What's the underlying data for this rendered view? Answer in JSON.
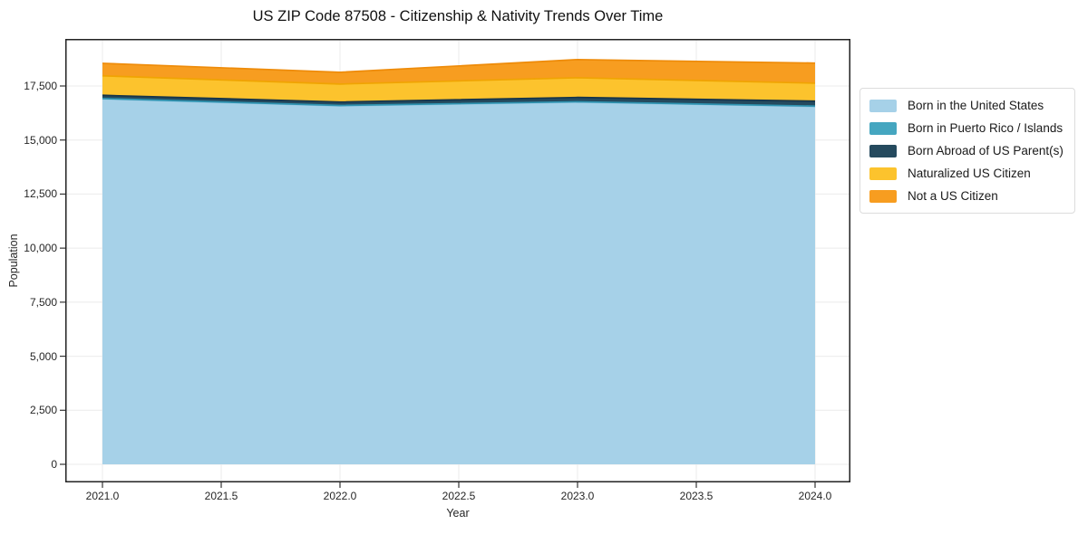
{
  "title": "US ZIP Code 87508 - Citizenship & Nativity Trends Over Time",
  "chart_data": {
    "type": "area",
    "stacked": true,
    "title": "US ZIP Code 87508 - Citizenship & Nativity Trends Over Time",
    "xlabel": "Year",
    "ylabel": "Population",
    "x": [
      2021,
      2022,
      2023,
      2024
    ],
    "series": [
      {
        "name": "Born in the United States",
        "values": [
          16900,
          16580,
          16750,
          16550
        ],
        "fill": "#a6d1e8",
        "edge": "#88c0dd"
      },
      {
        "name": "Born in Puerto Rico / Islands",
        "values": [
          20,
          20,
          20,
          20
        ],
        "fill": "#45a6c0",
        "edge": "#2e93b0"
      },
      {
        "name": "Born Abroad of US Parent(s)",
        "values": [
          150,
          160,
          200,
          230
        ],
        "fill": "#254a5e",
        "edge": "#16344a"
      },
      {
        "name": "Naturalized US Citizen",
        "values": [
          900,
          830,
          910,
          830
        ],
        "fill": "#fcc32d",
        "edge": "#f0a402"
      },
      {
        "name": "Not a US Citizen",
        "values": [
          580,
          545,
          840,
          930
        ],
        "fill": "#f79d20",
        "edge": "#ee8b09"
      }
    ],
    "totals": [
      18550,
      18135,
      18720,
      18560
    ],
    "xtick_values": [
      2021,
      2021.5,
      2022,
      2022.5,
      2023,
      2023.5,
      2024
    ],
    "xtick_labels": [
      "2021.0",
      "2021.5",
      "2022.0",
      "2022.5",
      "2023.0",
      "2023.5",
      "2024.0"
    ],
    "ytick_values": [
      0,
      2500,
      5000,
      7500,
      10000,
      12500,
      15000,
      17500
    ],
    "ytick_labels": [
      "0",
      "2,500",
      "5,000",
      "7,500",
      "10,000",
      "12,500",
      "15,000",
      "17,500"
    ],
    "xlim": [
      2020.84,
      2024.16
    ],
    "ylim": [
      -900,
      19680
    ],
    "grid": true,
    "legend_position": "right-outside",
    "colors": {
      "grid": "#ebebeb",
      "spine": "#222222",
      "tick": "#333333",
      "background": "#ffffff"
    }
  }
}
